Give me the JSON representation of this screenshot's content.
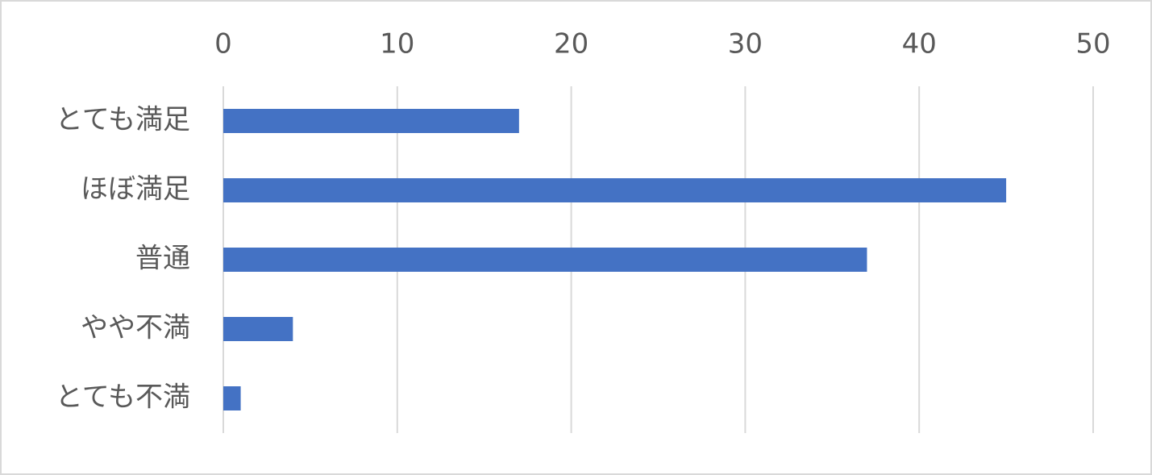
{
  "chart_data": {
    "type": "bar",
    "categories": [
      "とても満足",
      "ほぼ満足",
      "普通",
      "やや不満",
      "とても不満"
    ],
    "values": [
      17,
      45,
      37,
      4,
      1
    ],
    "color": "#4472c4",
    "xlim": [
      0,
      50
    ],
    "xticks": [
      0,
      10,
      20,
      30,
      40,
      50
    ],
    "grid": true
  }
}
